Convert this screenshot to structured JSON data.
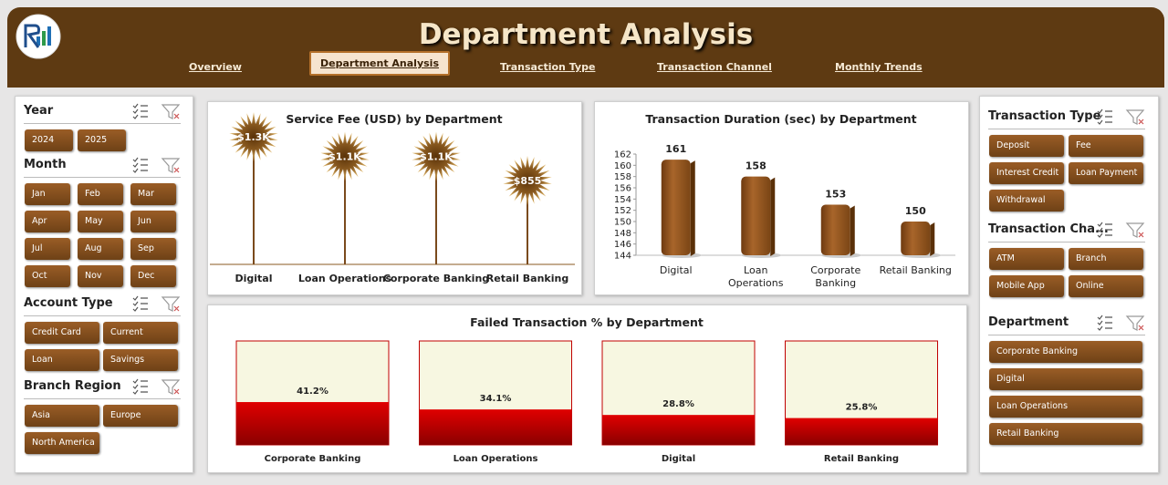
{
  "header": {
    "title": "Department Analysis"
  },
  "nav": [
    {
      "label": "Overview",
      "active": false
    },
    {
      "label": "Department Analysis",
      "active": true
    },
    {
      "label": "Transaction Type",
      "active": false
    },
    {
      "label": "Transaction Channel",
      "active": false
    },
    {
      "label": "Monthly Trends",
      "active": false
    }
  ],
  "slicers_left": [
    {
      "title": "Year",
      "items": [
        "2024",
        "2025"
      ]
    },
    {
      "title": "Month",
      "items": [
        "Jan",
        "Feb",
        "Mar",
        "Apr",
        "May",
        "Jun",
        "Jul",
        "Aug",
        "Sep",
        "Oct",
        "Nov",
        "Dec"
      ]
    },
    {
      "title": "Account Type",
      "items": [
        "Credit Card",
        "Current",
        "Loan",
        "Savings"
      ]
    },
    {
      "title": "Branch Region",
      "items": [
        "Asia",
        "Europe",
        "North America"
      ]
    }
  ],
  "slicers_right": [
    {
      "title": "Transaction Type",
      "items": [
        "Deposit",
        "Fee",
        "Interest Credit",
        "Loan Payment",
        "Withdrawal"
      ]
    },
    {
      "title": "Transaction Cha...",
      "items": [
        "ATM",
        "Branch",
        "Mobile App",
        "Online"
      ]
    },
    {
      "title": "Department",
      "items": [
        "Corporate Banking",
        "Digital",
        "Loan Operations",
        "Retail Banking"
      ]
    }
  ],
  "chart_data": [
    {
      "type": "lollipop",
      "title": "Service Fee (USD) by Department",
      "categories": [
        "Digital",
        "Loan Operations",
        "Corporate Banking",
        "Retail Banking"
      ],
      "values": [
        1300,
        1100,
        1100,
        855
      ],
      "value_labels": [
        "$1.3K",
        "$1.1K",
        "$1.1K",
        "$855"
      ],
      "color": "#7a4a1c"
    },
    {
      "type": "bar",
      "title": "Transaction Duration (sec) by Department",
      "categories": [
        "Digital",
        "Loan Operations",
        "Corporate Banking",
        "Retail Banking"
      ],
      "values": [
        161,
        158,
        153,
        150
      ],
      "color": "#8b4f1d",
      "ylim": [
        144,
        162
      ],
      "yticks": [
        144,
        146,
        148,
        150,
        152,
        154,
        156,
        158,
        160,
        162
      ]
    },
    {
      "type": "fill",
      "title": "Failed Transaction % by Department",
      "categories": [
        "Corporate Banking",
        "Loan Operations",
        "Digital",
        "Retail Banking"
      ],
      "values": [
        41.2,
        34.1,
        28.8,
        25.8
      ],
      "value_labels": [
        "41.2%",
        "34.1%",
        "28.8%",
        "25.8%"
      ],
      "color": "#c00000",
      "ylim": [
        0,
        100
      ]
    }
  ]
}
